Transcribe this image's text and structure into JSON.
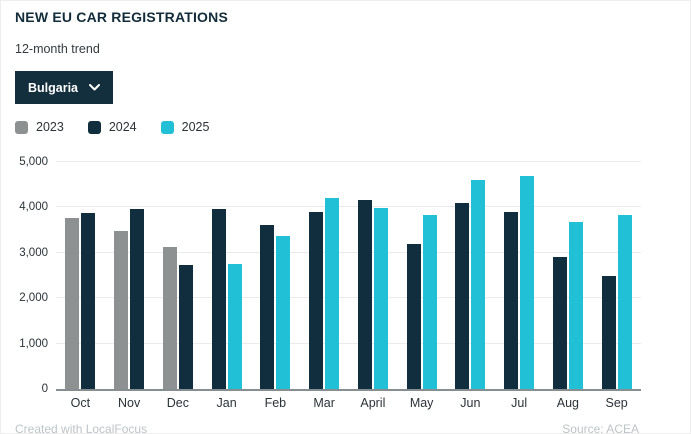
{
  "header": {
    "title": "NEW EU CAR REGISTRATIONS",
    "subtitle": "12-month trend"
  },
  "country_dropdown": {
    "selected": "Bulgaria"
  },
  "legend": [
    {
      "label": "2023",
      "color": "#8e9192"
    },
    {
      "label": "2024",
      "color": "#112e3e"
    },
    {
      "label": "2025",
      "color": "#21c0d7"
    }
  ],
  "footer": {
    "credit": "Created with LocalFocus",
    "source": "Source: ACEA"
  },
  "colors": {
    "title": "#132c3a",
    "dropdown_bg": "#132f3e",
    "gridline": "#e9eceb",
    "axis_line": "#878e91",
    "footer_text": "#bdc4c7",
    "bar_2023": "#8e9192",
    "bar_2024": "#112e3e",
    "bar_2025": "#21c0d7"
  },
  "chart_data": {
    "type": "bar",
    "title": "NEW EU CAR REGISTRATIONS",
    "subtitle": "12-month trend",
    "categories": [
      "Oct",
      "Nov",
      "Dec",
      "Jan",
      "Feb",
      "Mar",
      "April",
      "May",
      "Jun",
      "Jul",
      "Aug",
      "Sep"
    ],
    "series": [
      {
        "name": "2023",
        "color": "#8e9192",
        "values": [
          3760,
          3470,
          3130,
          null,
          null,
          null,
          null,
          null,
          null,
          null,
          null,
          null
        ]
      },
      {
        "name": "2024",
        "color": "#112e3e",
        "values": [
          3870,
          3960,
          2730,
          3960,
          3620,
          3900,
          4170,
          3190,
          4100,
          3910,
          2910,
          2490
        ]
      },
      {
        "name": "2025",
        "color": "#21c0d7",
        "values": [
          null,
          null,
          null,
          2760,
          3370,
          4210,
          3980,
          3840,
          4610,
          4700,
          3670,
          3830
        ]
      }
    ],
    "xlabel": "",
    "ylabel": "",
    "ylim": [
      0,
      5000
    ],
    "yticks": [
      0,
      1000,
      2000,
      3000,
      4000,
      5000
    ],
    "ytick_labels": [
      "0",
      "1,000",
      "2,000",
      "3,000",
      "4,000",
      "5,000"
    ],
    "grid": true,
    "legend_position": "top"
  }
}
